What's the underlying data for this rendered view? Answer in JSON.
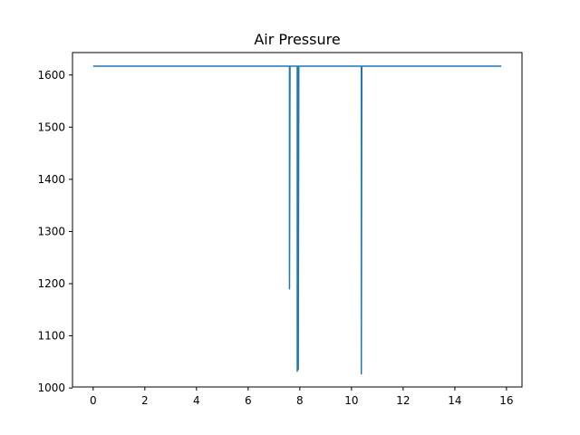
{
  "chart_data": {
    "type": "line",
    "title": "Air Pressure",
    "xlabel": "",
    "ylabel": "",
    "xlim": [
      -0.8,
      16.6
    ],
    "ylim": [
      1002,
      1643
    ],
    "x_ticks": [
      0,
      2,
      4,
      6,
      8,
      10,
      12,
      14,
      16
    ],
    "y_ticks": [
      1000,
      1100,
      1200,
      1300,
      1400,
      1500,
      1600
    ],
    "grid": false,
    "legend": "none",
    "series": [
      {
        "color": "#1f77b4",
        "x": [
          0,
          7.55,
          7.6,
          7.6,
          7.62,
          7.9,
          7.9,
          7.92,
          7.92,
          7.94,
          7.94,
          7.96,
          7.98,
          8.0,
          10.35,
          10.38,
          10.38,
          10.4,
          15.8
        ],
        "y": [
          1617,
          1617,
          1617,
          1190,
          1617,
          1617,
          1032,
          1617,
          1035,
          1617,
          1036,
          1617,
          1617,
          1617,
          1617,
          1617,
          1027,
          1617,
          1617
        ]
      }
    ]
  }
}
